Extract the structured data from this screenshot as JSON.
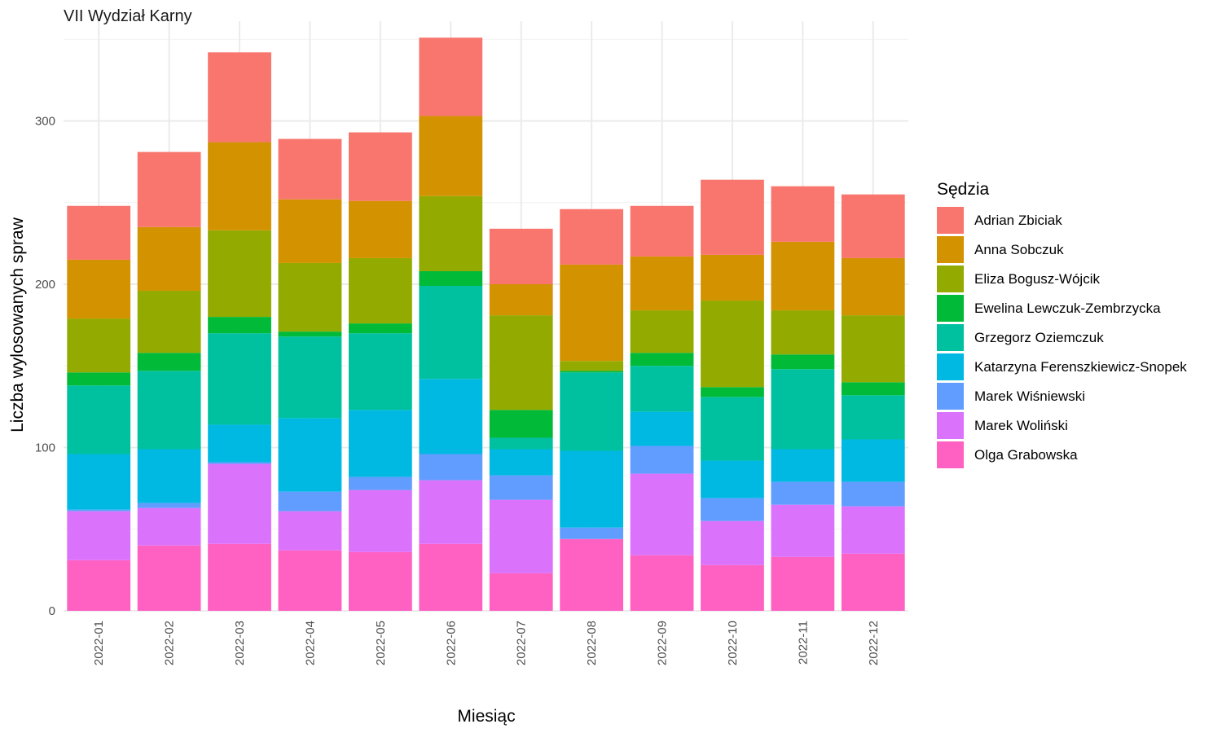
{
  "chart_data": {
    "type": "bar",
    "stacked": true,
    "title": "VII Wydział Karny",
    "xlabel": "Miesiąc",
    "ylabel": "Liczba wylosowanych spraw",
    "ylim": [
      0,
      350
    ],
    "yticks": [
      0,
      100,
      200,
      300
    ],
    "grid": true,
    "legend_title": "Sędzia",
    "legend_position": "right",
    "categories": [
      "2022-01",
      "2022-02",
      "2022-03",
      "2022-04",
      "2022-05",
      "2022-06",
      "2022-07",
      "2022-08",
      "2022-09",
      "2022-10",
      "2022-11",
      "2022-12"
    ],
    "series": [
      {
        "name": "Olga Grabowska",
        "color": "#FF61C3",
        "values": [
          31,
          40,
          41,
          37,
          36,
          41,
          23,
          44,
          34,
          28,
          33,
          35
        ]
      },
      {
        "name": "Marek Woliński",
        "color": "#DB72FB",
        "values": [
          30,
          23,
          49,
          24,
          38,
          39,
          45,
          0,
          50,
          27,
          32,
          29
        ]
      },
      {
        "name": "Marek Wiśniewski",
        "color": "#619CFF",
        "values": [
          1,
          3,
          1,
          12,
          8,
          16,
          15,
          7,
          17,
          14,
          14,
          15
        ]
      },
      {
        "name": "Katarzyna Ferenszkiewicz-Snopek",
        "color": "#00B9E3",
        "values": [
          34,
          33,
          23,
          45,
          41,
          46,
          16,
          47,
          21,
          23,
          20,
          26
        ]
      },
      {
        "name": "Grzegorz Oziemczuk",
        "color": "#00C19F",
        "values": [
          42,
          48,
          56,
          50,
          47,
          57,
          7,
          48,
          28,
          39,
          49,
          27
        ]
      },
      {
        "name": "Ewelina Lewczuk-Zembrzycka",
        "color": "#00BA38",
        "values": [
          8,
          11,
          10,
          3,
          6,
          9,
          17,
          1,
          8,
          6,
          9,
          8
        ]
      },
      {
        "name": "Eliza Bogusz-Wójcik",
        "color": "#93AA00",
        "values": [
          33,
          38,
          53,
          42,
          40,
          46,
          58,
          6,
          26,
          53,
          27,
          41
        ]
      },
      {
        "name": "Anna Sobczuk",
        "color": "#D39200",
        "values": [
          36,
          39,
          54,
          39,
          35,
          49,
          19,
          59,
          33,
          28,
          42,
          35
        ]
      },
      {
        "name": "Adrian Zbiciak",
        "color": "#F8766D",
        "values": [
          33,
          46,
          55,
          37,
          42,
          48,
          34,
          34,
          31,
          46,
          34,
          39
        ]
      }
    ],
    "legend_order": [
      "Adrian Zbiciak",
      "Anna Sobczuk",
      "Eliza Bogusz-Wójcik",
      "Ewelina Lewczuk-Zembrzycka",
      "Grzegorz Oziemczuk",
      "Katarzyna Ferenszkiewicz-Snopek",
      "Marek Wiśniewski",
      "Marek Woliński",
      "Olga Grabowska"
    ]
  }
}
